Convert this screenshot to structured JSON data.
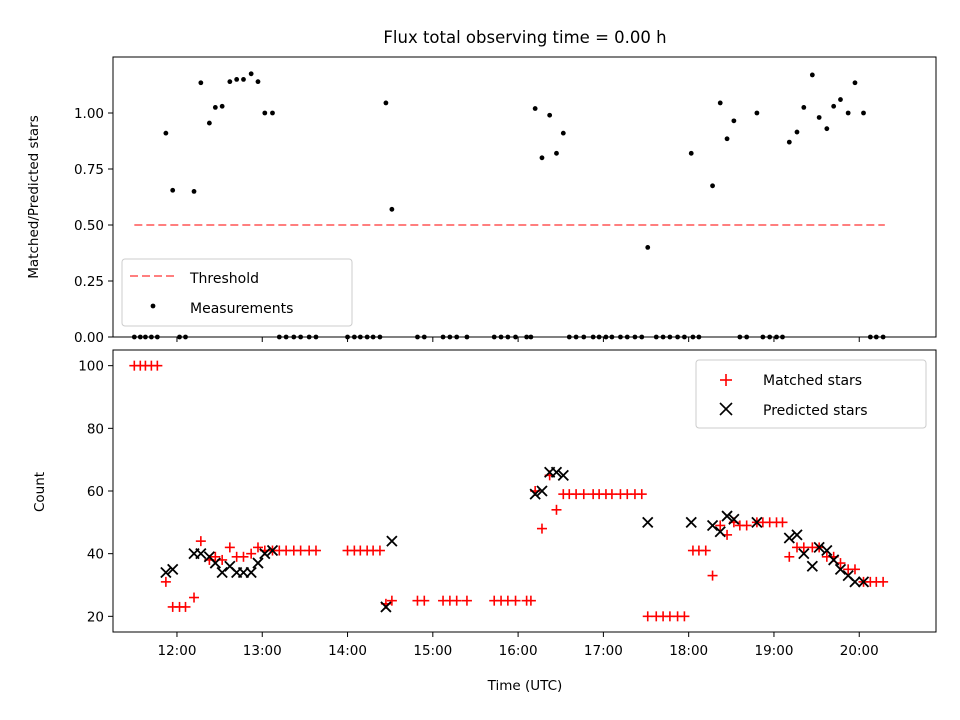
{
  "figure": {
    "title": "Flux total observing time = 0.00 h"
  },
  "chart_data": [
    {
      "type": "scatter",
      "ylabel": "Matched/Predicted stars",
      "xlim": [
        11.25,
        20.9
      ],
      "ylim": [
        0,
        1.25
      ],
      "yticks": [
        0,
        0.25,
        0.5,
        0.75,
        1.0
      ],
      "ytick_labels": [
        "0.00",
        "0.25",
        "0.50",
        "0.75",
        "1.00"
      ],
      "threshold": {
        "name": "Threshold",
        "value": 0.5,
        "x": [
          11.5,
          20.3
        ],
        "color": "#ff7f7f"
      },
      "series": [
        {
          "name": "Measurements",
          "color": "#000000",
          "points": [
            [
              11.5,
              0
            ],
            [
              11.57,
              0
            ],
            [
              11.63,
              0
            ],
            [
              11.7,
              0
            ],
            [
              11.77,
              0
            ],
            [
              11.87,
              0.91
            ],
            [
              11.95,
              0.655
            ],
            [
              12.03,
              0
            ],
            [
              12.1,
              0
            ],
            [
              12.2,
              0.65
            ],
            [
              12.28,
              1.135
            ],
            [
              12.38,
              0.955
            ],
            [
              12.45,
              1.025
            ],
            [
              12.53,
              1.03
            ],
            [
              12.62,
              1.14
            ],
            [
              12.7,
              1.15
            ],
            [
              12.78,
              1.15
            ],
            [
              12.87,
              1.175
            ],
            [
              12.95,
              1.14
            ],
            [
              13.03,
              1.0
            ],
            [
              13.12,
              1.0
            ],
            [
              13.2,
              0
            ],
            [
              13.28,
              0
            ],
            [
              13.37,
              0
            ],
            [
              13.45,
              0
            ],
            [
              13.55,
              0
            ],
            [
              13.63,
              0
            ],
            [
              14.0,
              0
            ],
            [
              14.08,
              0
            ],
            [
              14.15,
              0
            ],
            [
              14.23,
              0
            ],
            [
              14.3,
              0
            ],
            [
              14.38,
              0
            ],
            [
              14.45,
              1.045
            ],
            [
              14.52,
              0.57
            ],
            [
              14.82,
              0
            ],
            [
              14.9,
              0
            ],
            [
              15.12,
              0
            ],
            [
              15.2,
              0
            ],
            [
              15.28,
              0
            ],
            [
              15.4,
              0
            ],
            [
              15.72,
              0
            ],
            [
              15.8,
              0
            ],
            [
              15.88,
              0
            ],
            [
              15.97,
              0
            ],
            [
              16.1,
              0
            ],
            [
              16.15,
              0
            ],
            [
              16.2,
              1.02
            ],
            [
              16.28,
              0.8
            ],
            [
              16.37,
              0.99
            ],
            [
              16.45,
              0.82
            ],
            [
              16.53,
              0.91
            ],
            [
              16.6,
              0
            ],
            [
              16.68,
              0
            ],
            [
              16.77,
              0
            ],
            [
              16.88,
              0
            ],
            [
              16.95,
              0
            ],
            [
              17.03,
              0
            ],
            [
              17.1,
              0
            ],
            [
              17.2,
              0
            ],
            [
              17.28,
              0
            ],
            [
              17.37,
              0
            ],
            [
              17.45,
              0
            ],
            [
              17.52,
              0.4
            ],
            [
              17.62,
              0
            ],
            [
              17.7,
              0
            ],
            [
              17.78,
              0
            ],
            [
              17.87,
              0
            ],
            [
              17.95,
              0
            ],
            [
              18.05,
              0
            ],
            [
              18.12,
              0
            ],
            [
              18.03,
              0.82
            ],
            [
              18.28,
              0.675
            ],
            [
              18.37,
              1.045
            ],
            [
              18.45,
              0.885
            ],
            [
              18.53,
              0.965
            ],
            [
              18.6,
              0
            ],
            [
              18.68,
              0
            ],
            [
              18.8,
              1.0
            ],
            [
              18.87,
              0
            ],
            [
              18.95,
              0
            ],
            [
              19.03,
              0
            ],
            [
              19.1,
              0
            ],
            [
              19.18,
              0.87
            ],
            [
              19.27,
              0.915
            ],
            [
              19.35,
              1.025
            ],
            [
              19.45,
              1.17
            ],
            [
              19.53,
              0.98
            ],
            [
              19.62,
              0.93
            ],
            [
              19.7,
              1.03
            ],
            [
              19.78,
              1.06
            ],
            [
              19.87,
              1.0
            ],
            [
              19.95,
              1.135
            ],
            [
              20.05,
              1.0
            ],
            [
              20.13,
              0
            ],
            [
              20.2,
              0
            ],
            [
              20.28,
              0
            ]
          ]
        }
      ],
      "legend": {
        "loc": "lower left",
        "entries": [
          "Threshold",
          "Measurements"
        ]
      }
    },
    {
      "type": "scatter",
      "xlabel": "Time (UTC)",
      "ylabel": "Count",
      "xlim": [
        11.25,
        20.9
      ],
      "ylim": [
        15,
        105
      ],
      "yticks": [
        20,
        40,
        60,
        80,
        100
      ],
      "xticks": [
        12,
        13,
        14,
        15,
        16,
        17,
        18,
        19,
        20
      ],
      "xtick_labels": [
        "12:00",
        "13:00",
        "14:00",
        "15:00",
        "16:00",
        "17:00",
        "18:00",
        "19:00",
        "20:00"
      ],
      "series": [
        {
          "name": "Matched stars",
          "marker": "+",
          "color": "#ff0000",
          "points": [
            [
              11.5,
              100
            ],
            [
              11.57,
              100
            ],
            [
              11.63,
              100
            ],
            [
              11.7,
              100
            ],
            [
              11.77,
              100
            ],
            [
              11.87,
              31
            ],
            [
              11.95,
              23
            ],
            [
              12.03,
              23
            ],
            [
              12.1,
              23
            ],
            [
              12.2,
              26
            ],
            [
              12.28,
              44
            ],
            [
              12.38,
              38
            ],
            [
              12.45,
              39
            ],
            [
              12.53,
              38
            ],
            [
              12.62,
              42
            ],
            [
              12.7,
              39
            ],
            [
              12.78,
              39
            ],
            [
              12.87,
              40
            ],
            [
              12.95,
              42
            ],
            [
              13.03,
              41
            ],
            [
              13.12,
              41
            ],
            [
              13.2,
              41
            ],
            [
              13.28,
              41
            ],
            [
              13.37,
              41
            ],
            [
              13.45,
              41
            ],
            [
              13.55,
              41
            ],
            [
              13.63,
              41
            ],
            [
              14.0,
              41
            ],
            [
              14.08,
              41
            ],
            [
              14.15,
              41
            ],
            [
              14.23,
              41
            ],
            [
              14.3,
              41
            ],
            [
              14.38,
              41
            ],
            [
              14.45,
              24
            ],
            [
              14.52,
              25
            ],
            [
              14.82,
              25
            ],
            [
              14.9,
              25
            ],
            [
              15.12,
              25
            ],
            [
              15.2,
              25
            ],
            [
              15.28,
              25
            ],
            [
              15.4,
              25
            ],
            [
              15.72,
              25
            ],
            [
              15.8,
              25
            ],
            [
              15.88,
              25
            ],
            [
              15.97,
              25
            ],
            [
              16.1,
              25
            ],
            [
              16.15,
              25
            ],
            [
              16.2,
              60
            ],
            [
              16.28,
              48
            ],
            [
              16.37,
              65
            ],
            [
              16.45,
              54
            ],
            [
              16.53,
              59
            ],
            [
              16.6,
              59
            ],
            [
              16.68,
              59
            ],
            [
              16.77,
              59
            ],
            [
              16.88,
              59
            ],
            [
              16.95,
              59
            ],
            [
              17.03,
              59
            ],
            [
              17.1,
              59
            ],
            [
              17.2,
              59
            ],
            [
              17.28,
              59
            ],
            [
              17.37,
              59
            ],
            [
              17.45,
              59
            ],
            [
              17.52,
              20
            ],
            [
              17.62,
              20
            ],
            [
              17.7,
              20
            ],
            [
              17.78,
              20
            ],
            [
              17.87,
              20
            ],
            [
              17.95,
              20
            ],
            [
              18.05,
              41
            ],
            [
              18.12,
              41
            ],
            [
              18.2,
              41
            ],
            [
              18.28,
              33
            ],
            [
              18.37,
              49
            ],
            [
              18.45,
              46
            ],
            [
              18.53,
              50
            ],
            [
              18.6,
              49
            ],
            [
              18.68,
              49
            ],
            [
              18.8,
              50
            ],
            [
              18.87,
              50
            ],
            [
              18.95,
              50
            ],
            [
              19.03,
              50
            ],
            [
              19.1,
              50
            ],
            [
              19.18,
              39
            ],
            [
              19.27,
              42
            ],
            [
              19.35,
              42
            ],
            [
              19.45,
              42
            ],
            [
              19.53,
              42
            ],
            [
              19.62,
              39
            ],
            [
              19.7,
              39
            ],
            [
              19.78,
              37
            ],
            [
              19.87,
              35
            ],
            [
              19.95,
              35
            ],
            [
              20.05,
              31
            ],
            [
              20.13,
              31
            ],
            [
              20.2,
              31
            ],
            [
              20.28,
              31
            ]
          ]
        },
        {
          "name": "Predicted stars",
          "marker": "x",
          "color": "#000000",
          "points": [
            [
              11.87,
              34
            ],
            [
              11.95,
              35
            ],
            [
              12.2,
              40
            ],
            [
              12.28,
              40
            ],
            [
              12.38,
              39
            ],
            [
              12.45,
              37
            ],
            [
              12.53,
              34
            ],
            [
              12.62,
              36
            ],
            [
              12.7,
              34
            ],
            [
              12.78,
              34
            ],
            [
              12.87,
              34
            ],
            [
              12.95,
              37
            ],
            [
              13.03,
              40
            ],
            [
              13.12,
              41
            ],
            [
              14.45,
              23
            ],
            [
              14.52,
              44
            ],
            [
              16.2,
              59
            ],
            [
              16.28,
              60
            ],
            [
              16.37,
              66
            ],
            [
              16.45,
              66
            ],
            [
              16.53,
              65
            ],
            [
              17.52,
              50
            ],
            [
              18.03,
              50
            ],
            [
              18.28,
              49
            ],
            [
              18.37,
              47
            ],
            [
              18.45,
              52
            ],
            [
              18.53,
              51
            ],
            [
              18.8,
              50
            ],
            [
              19.18,
              45
            ],
            [
              19.27,
              46
            ],
            [
              19.35,
              40
            ],
            [
              19.45,
              36
            ],
            [
              19.53,
              42
            ],
            [
              19.62,
              41
            ],
            [
              19.7,
              38
            ],
            [
              19.78,
              35
            ],
            [
              19.87,
              33
            ],
            [
              19.95,
              31
            ],
            [
              20.05,
              31
            ]
          ]
        }
      ],
      "legend": {
        "loc": "upper right",
        "entries": [
          "Matched stars",
          "Predicted stars"
        ]
      }
    }
  ]
}
